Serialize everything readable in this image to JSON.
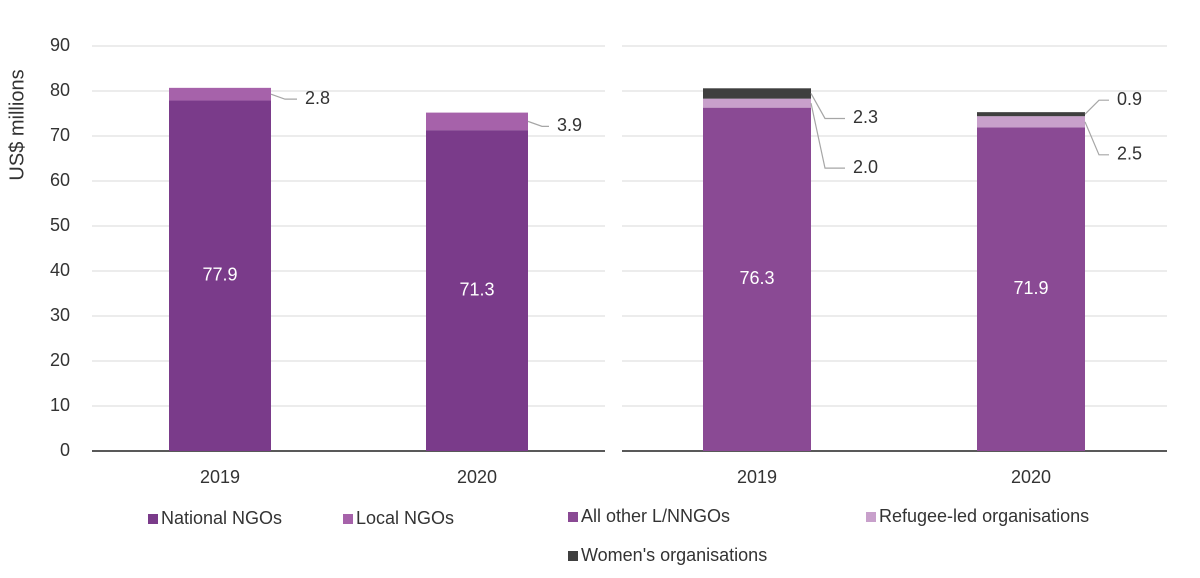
{
  "chart_data": [
    {
      "type": "bar",
      "stacked": true,
      "y_label": "US$ millions",
      "categories": [
        "2019",
        "2020"
      ],
      "ylim": [
        0,
        90
      ],
      "yticks": [
        0,
        10,
        20,
        30,
        40,
        50,
        60,
        70,
        80,
        90
      ],
      "grid": true,
      "series": [
        {
          "name": "National NGOs",
          "color": "#7a3b8a",
          "values": [
            77.9,
            71.3
          ],
          "value_labels": [
            "77.9",
            "71.3"
          ]
        },
        {
          "name": "Local NGOs",
          "color": "#a662aa",
          "values": [
            2.8,
            3.9
          ],
          "value_labels": [
            "2.8",
            "3.9"
          ]
        }
      ]
    },
    {
      "type": "bar",
      "stacked": true,
      "categories": [
        "2019",
        "2020"
      ],
      "ylim": [
        0,
        90
      ],
      "yticks": [
        0,
        10,
        20,
        30,
        40,
        50,
        60,
        70,
        80,
        90
      ],
      "grid": true,
      "series": [
        {
          "name": "All other L/NNGOs",
          "color": "#8a4a94",
          "values": [
            76.3,
            71.9
          ],
          "value_labels": [
            "76.3",
            "71.9"
          ]
        },
        {
          "name": "Refugee-led organisations",
          "color": "#c8a0cb",
          "values": [
            2.0,
            2.5
          ],
          "value_labels": [
            "2.0",
            "2.5"
          ]
        },
        {
          "name": "Women's organisations",
          "color": "#3f3f3f",
          "values": [
            2.3,
            0.9
          ],
          "value_labels": [
            "2.3",
            "0.9"
          ]
        }
      ]
    }
  ]
}
